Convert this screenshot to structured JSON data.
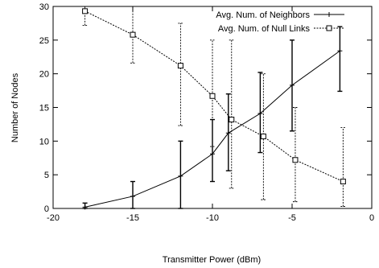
{
  "chart_data": {
    "type": "line",
    "xlabel": "Transmitter Power (dBm)",
    "ylabel": "Number of Nodes",
    "xlim": [
      -20,
      0
    ],
    "ylim": [
      0,
      30
    ],
    "xticks": [
      -20,
      -15,
      -10,
      -5,
      0
    ],
    "yticks": [
      0,
      5,
      10,
      15,
      20,
      25,
      30
    ],
    "grid": false,
    "legend_position": "top-right",
    "series": [
      {
        "name": "Avg. Num. of Neighbors",
        "line_style": "solid",
        "marker": "plus",
        "color": "#000000",
        "x": [
          -18,
          -15,
          -12,
          -10,
          -9,
          -7,
          -5,
          -2
        ],
        "y": [
          0.2,
          1.8,
          4.8,
          8.1,
          11.2,
          14.1,
          18.3,
          23.4
        ],
        "err_low": [
          0,
          0,
          0,
          4.0,
          5.6,
          8.3,
          11.5,
          17.4
        ],
        "err_high": [
          0.8,
          4.0,
          10.0,
          13.2,
          17.0,
          20.2,
          25.0,
          27.0
        ]
      },
      {
        "name": "Avg. Num. of Null Links",
        "line_style": "dotted",
        "marker": "square",
        "color": "#000000",
        "x": [
          -18,
          -15,
          -12,
          -10,
          -8.8,
          -6.8,
          -4.8,
          -1.8
        ],
        "y": [
          29.3,
          25.8,
          21.2,
          16.7,
          13.2,
          10.7,
          7.2,
          4.0
        ],
        "err_low": [
          27.2,
          21.6,
          12.3,
          9.2,
          3.0,
          1.3,
          1.0,
          0.3
        ],
        "err_high": [
          30.0,
          30.0,
          27.5,
          25.0,
          25.0,
          20.0,
          15.0,
          12.0
        ]
      }
    ]
  }
}
